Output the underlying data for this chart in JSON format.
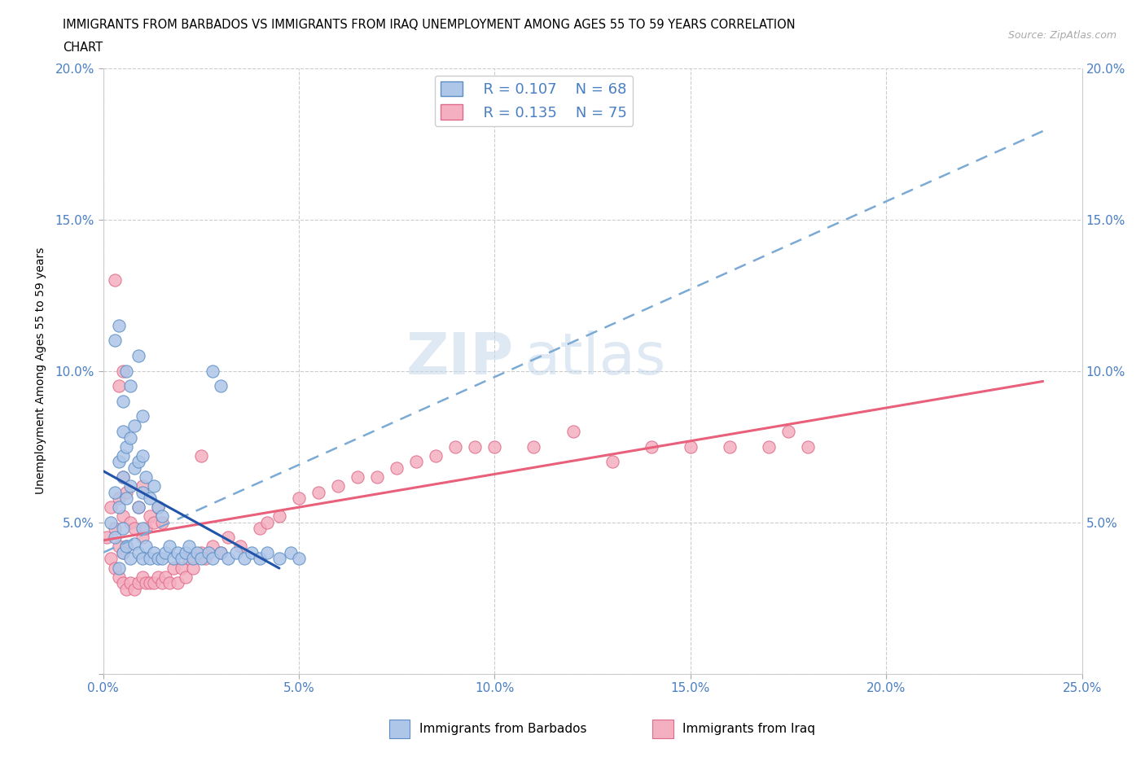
{
  "title_line1": "IMMIGRANTS FROM BARBADOS VS IMMIGRANTS FROM IRAQ UNEMPLOYMENT AMONG AGES 55 TO 59 YEARS CORRELATION",
  "title_line2": "CHART",
  "source_text": "Source: ZipAtlas.com",
  "ylabel": "Unemployment Among Ages 55 to 59 years",
  "xlim": [
    0.0,
    0.25
  ],
  "ylim": [
    0.0,
    0.2
  ],
  "x_ticks": [
    0.0,
    0.05,
    0.1,
    0.15,
    0.2,
    0.25
  ],
  "x_tick_labels": [
    "0.0%",
    "5.0%",
    "10.0%",
    "15.0%",
    "20.0%",
    "25.0%"
  ],
  "y_ticks": [
    0.0,
    0.05,
    0.1,
    0.15,
    0.2
  ],
  "y_tick_labels": [
    "",
    "5.0%",
    "10.0%",
    "15.0%",
    "20.0%"
  ],
  "barbados_color": "#aec6e8",
  "iraq_color": "#f4afc0",
  "barbados_edge": "#5b8ec4",
  "iraq_edge": "#e06a8a",
  "trendline_barbados_color": "#2255aa",
  "trendline_iraq_dashed_color": "#7baad4",
  "trendline_iraq_solid_color": "#e8607a",
  "legend_R_barbados": "R = 0.107",
  "legend_N_barbados": "N = 68",
  "legend_R_iraq": "R = 0.135",
  "legend_N_iraq": "N = 75",
  "watermark_zip": "ZIP",
  "watermark_atlas": "atlas",
  "barbados_x": [
    0.002,
    0.003,
    0.003,
    0.004,
    0.004,
    0.004,
    0.005,
    0.005,
    0.005,
    0.005,
    0.005,
    0.005,
    0.006,
    0.006,
    0.006,
    0.007,
    0.007,
    0.007,
    0.008,
    0.008,
    0.008,
    0.009,
    0.009,
    0.009,
    0.01,
    0.01,
    0.01,
    0.01,
    0.01,
    0.011,
    0.011,
    0.012,
    0.012,
    0.013,
    0.013,
    0.014,
    0.014,
    0.015,
    0.015,
    0.016,
    0.017,
    0.018,
    0.019,
    0.02,
    0.021,
    0.022,
    0.023,
    0.024,
    0.025,
    0.027,
    0.028,
    0.03,
    0.032,
    0.034,
    0.036,
    0.038,
    0.04,
    0.042,
    0.045,
    0.048,
    0.05,
    0.03,
    0.028,
    0.003,
    0.004,
    0.006,
    0.007,
    0.009
  ],
  "barbados_y": [
    0.05,
    0.045,
    0.06,
    0.035,
    0.055,
    0.07,
    0.04,
    0.048,
    0.065,
    0.072,
    0.08,
    0.09,
    0.042,
    0.058,
    0.075,
    0.038,
    0.062,
    0.078,
    0.043,
    0.068,
    0.082,
    0.04,
    0.055,
    0.07,
    0.038,
    0.048,
    0.06,
    0.072,
    0.085,
    0.042,
    0.065,
    0.038,
    0.058,
    0.04,
    0.062,
    0.038,
    0.055,
    0.038,
    0.052,
    0.04,
    0.042,
    0.038,
    0.04,
    0.038,
    0.04,
    0.042,
    0.038,
    0.04,
    0.038,
    0.04,
    0.038,
    0.04,
    0.038,
    0.04,
    0.038,
    0.04,
    0.038,
    0.04,
    0.038,
    0.04,
    0.038,
    0.095,
    0.1,
    0.11,
    0.115,
    0.1,
    0.095,
    0.105
  ],
  "iraq_x": [
    0.001,
    0.002,
    0.002,
    0.003,
    0.003,
    0.004,
    0.004,
    0.004,
    0.005,
    0.005,
    0.005,
    0.005,
    0.006,
    0.006,
    0.006,
    0.007,
    0.007,
    0.008,
    0.008,
    0.009,
    0.009,
    0.01,
    0.01,
    0.01,
    0.011,
    0.011,
    0.012,
    0.012,
    0.013,
    0.013,
    0.014,
    0.014,
    0.015,
    0.015,
    0.016,
    0.017,
    0.018,
    0.019,
    0.02,
    0.021,
    0.022,
    0.023,
    0.025,
    0.026,
    0.028,
    0.03,
    0.032,
    0.035,
    0.04,
    0.042,
    0.045,
    0.05,
    0.055,
    0.06,
    0.065,
    0.07,
    0.075,
    0.08,
    0.085,
    0.09,
    0.095,
    0.1,
    0.11,
    0.12,
    0.13,
    0.14,
    0.15,
    0.16,
    0.17,
    0.175,
    0.003,
    0.004,
    0.005,
    0.025,
    0.18
  ],
  "iraq_y": [
    0.045,
    0.038,
    0.055,
    0.035,
    0.048,
    0.032,
    0.042,
    0.058,
    0.03,
    0.04,
    0.052,
    0.065,
    0.028,
    0.042,
    0.06,
    0.03,
    0.05,
    0.028,
    0.048,
    0.03,
    0.055,
    0.032,
    0.045,
    0.062,
    0.03,
    0.048,
    0.03,
    0.052,
    0.03,
    0.05,
    0.032,
    0.055,
    0.03,
    0.05,
    0.032,
    0.03,
    0.035,
    0.03,
    0.035,
    0.032,
    0.038,
    0.035,
    0.04,
    0.038,
    0.042,
    0.04,
    0.045,
    0.042,
    0.048,
    0.05,
    0.052,
    0.058,
    0.06,
    0.062,
    0.065,
    0.065,
    0.068,
    0.07,
    0.072,
    0.075,
    0.075,
    0.075,
    0.075,
    0.08,
    0.07,
    0.075,
    0.075,
    0.075,
    0.075,
    0.08,
    0.13,
    0.095,
    0.1,
    0.072,
    0.075
  ]
}
